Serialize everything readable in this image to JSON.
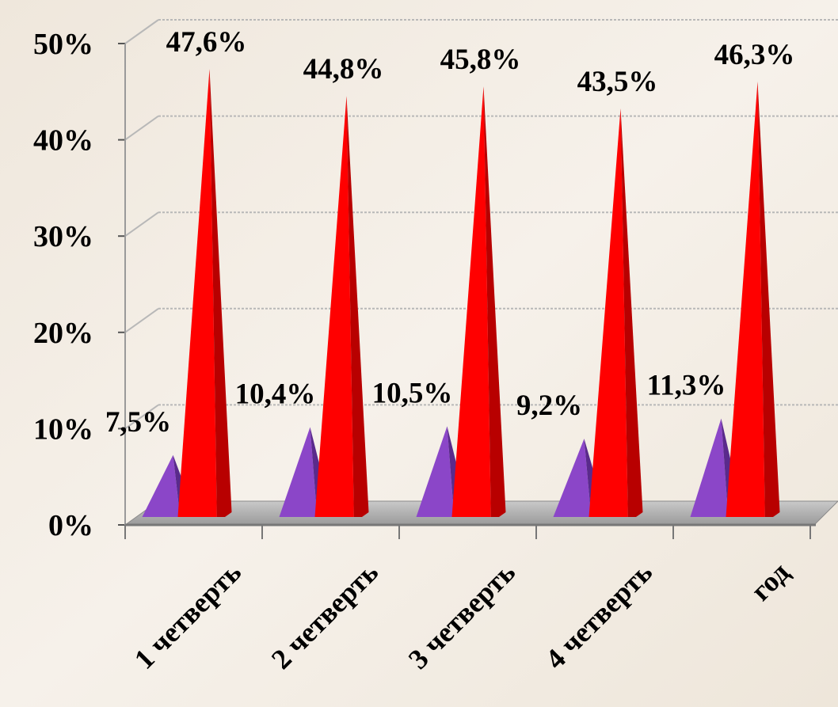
{
  "chart_data": {
    "type": "bar",
    "style": "3d-cone",
    "categories": [
      "1 четверть",
      "2 четверть",
      "3 четверть",
      "4 четверть",
      "год"
    ],
    "series": [
      {
        "values": [
          7.5,
          10.4,
          10.5,
          9.2,
          11.3
        ],
        "labels": [
          "7,5%",
          "10,4%",
          "10,5%",
          "9,2%",
          "11,3%"
        ],
        "color": "#8a3fc4"
      },
      {
        "values": [
          47.6,
          44.8,
          45.8,
          43.5,
          46.3
        ],
        "labels": [
          "47,6%",
          "44,8%",
          "45,8%",
          "43,5%",
          "46,3%"
        ],
        "color": "#ff0000"
      }
    ],
    "yticks": [
      "0%",
      "10%",
      "20%",
      "30%",
      "40%",
      "50%"
    ],
    "ylim": [
      0,
      50
    ],
    "grid": true,
    "title": "",
    "xlabel": "",
    "ylabel": ""
  }
}
